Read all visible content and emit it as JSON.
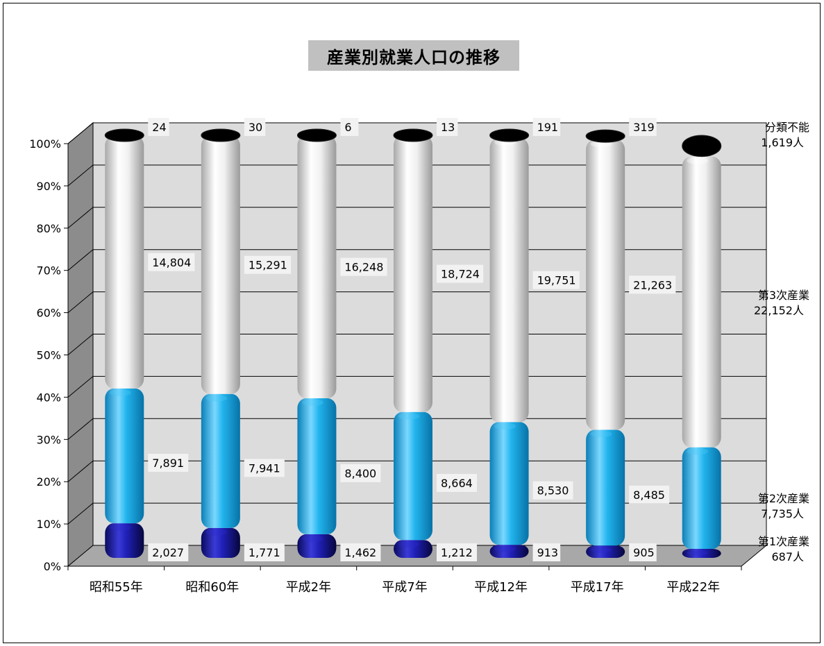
{
  "chart_data": {
    "type": "bar",
    "stacked": "percent",
    "title": "産業別就業人口の推移",
    "categories": [
      "昭和55年",
      "昭和60年",
      "平成2年",
      "平成7年",
      "平成12年",
      "平成17年",
      "平成22年"
    ],
    "series": [
      {
        "name": "第1次産業",
        "values": [
          2027,
          1771,
          1462,
          1212,
          913,
          905,
          687
        ],
        "labels": [
          "2,027",
          "1,771",
          "1,462",
          "1,212",
          "913",
          "905",
          ""
        ],
        "color": "#1a1aa8"
      },
      {
        "name": "第2次産業",
        "values": [
          7891,
          7941,
          8400,
          8664,
          8530,
          8485,
          7735
        ],
        "labels": [
          "7,891",
          "7,941",
          "8,400",
          "8,664",
          "8,530",
          "8,485",
          ""
        ],
        "color": "#1ab4ea"
      },
      {
        "name": "第3次産業",
        "values": [
          14804,
          15291,
          16248,
          18724,
          19751,
          21263,
          22152
        ],
        "labels": [
          "14,804",
          "15,291",
          "16,248",
          "18,724",
          "19,751",
          "21,263",
          ""
        ],
        "color": "#f4f4f4"
      },
      {
        "name": "分類不能",
        "values": [
          24,
          30,
          6,
          13,
          191,
          319,
          1619
        ],
        "labels": [
          "24",
          "30",
          "6",
          "13",
          "191",
          "319",
          ""
        ],
        "color": "#000000"
      }
    ],
    "last_labels": [
      {
        "line1": "第1次産業",
        "line2": "687人"
      },
      {
        "line1": "第2次産業",
        "line2": "7,735人"
      },
      {
        "line1": "第3次産業",
        "line2": "22,152人"
      },
      {
        "line1": "分類不能",
        "line2": "1,619人"
      }
    ],
    "y_ticks": [
      "0%",
      "10%",
      "20%",
      "30%",
      "40%",
      "50%",
      "60%",
      "70%",
      "80%",
      "90%",
      "100%"
    ],
    "ylim": [
      0,
      100
    ],
    "grid": true,
    "legend": "none",
    "colors": {
      "back_wall": "#dcdcdc",
      "side_wall": "#8c8c8c",
      "floor": "#a8a8a8"
    }
  }
}
